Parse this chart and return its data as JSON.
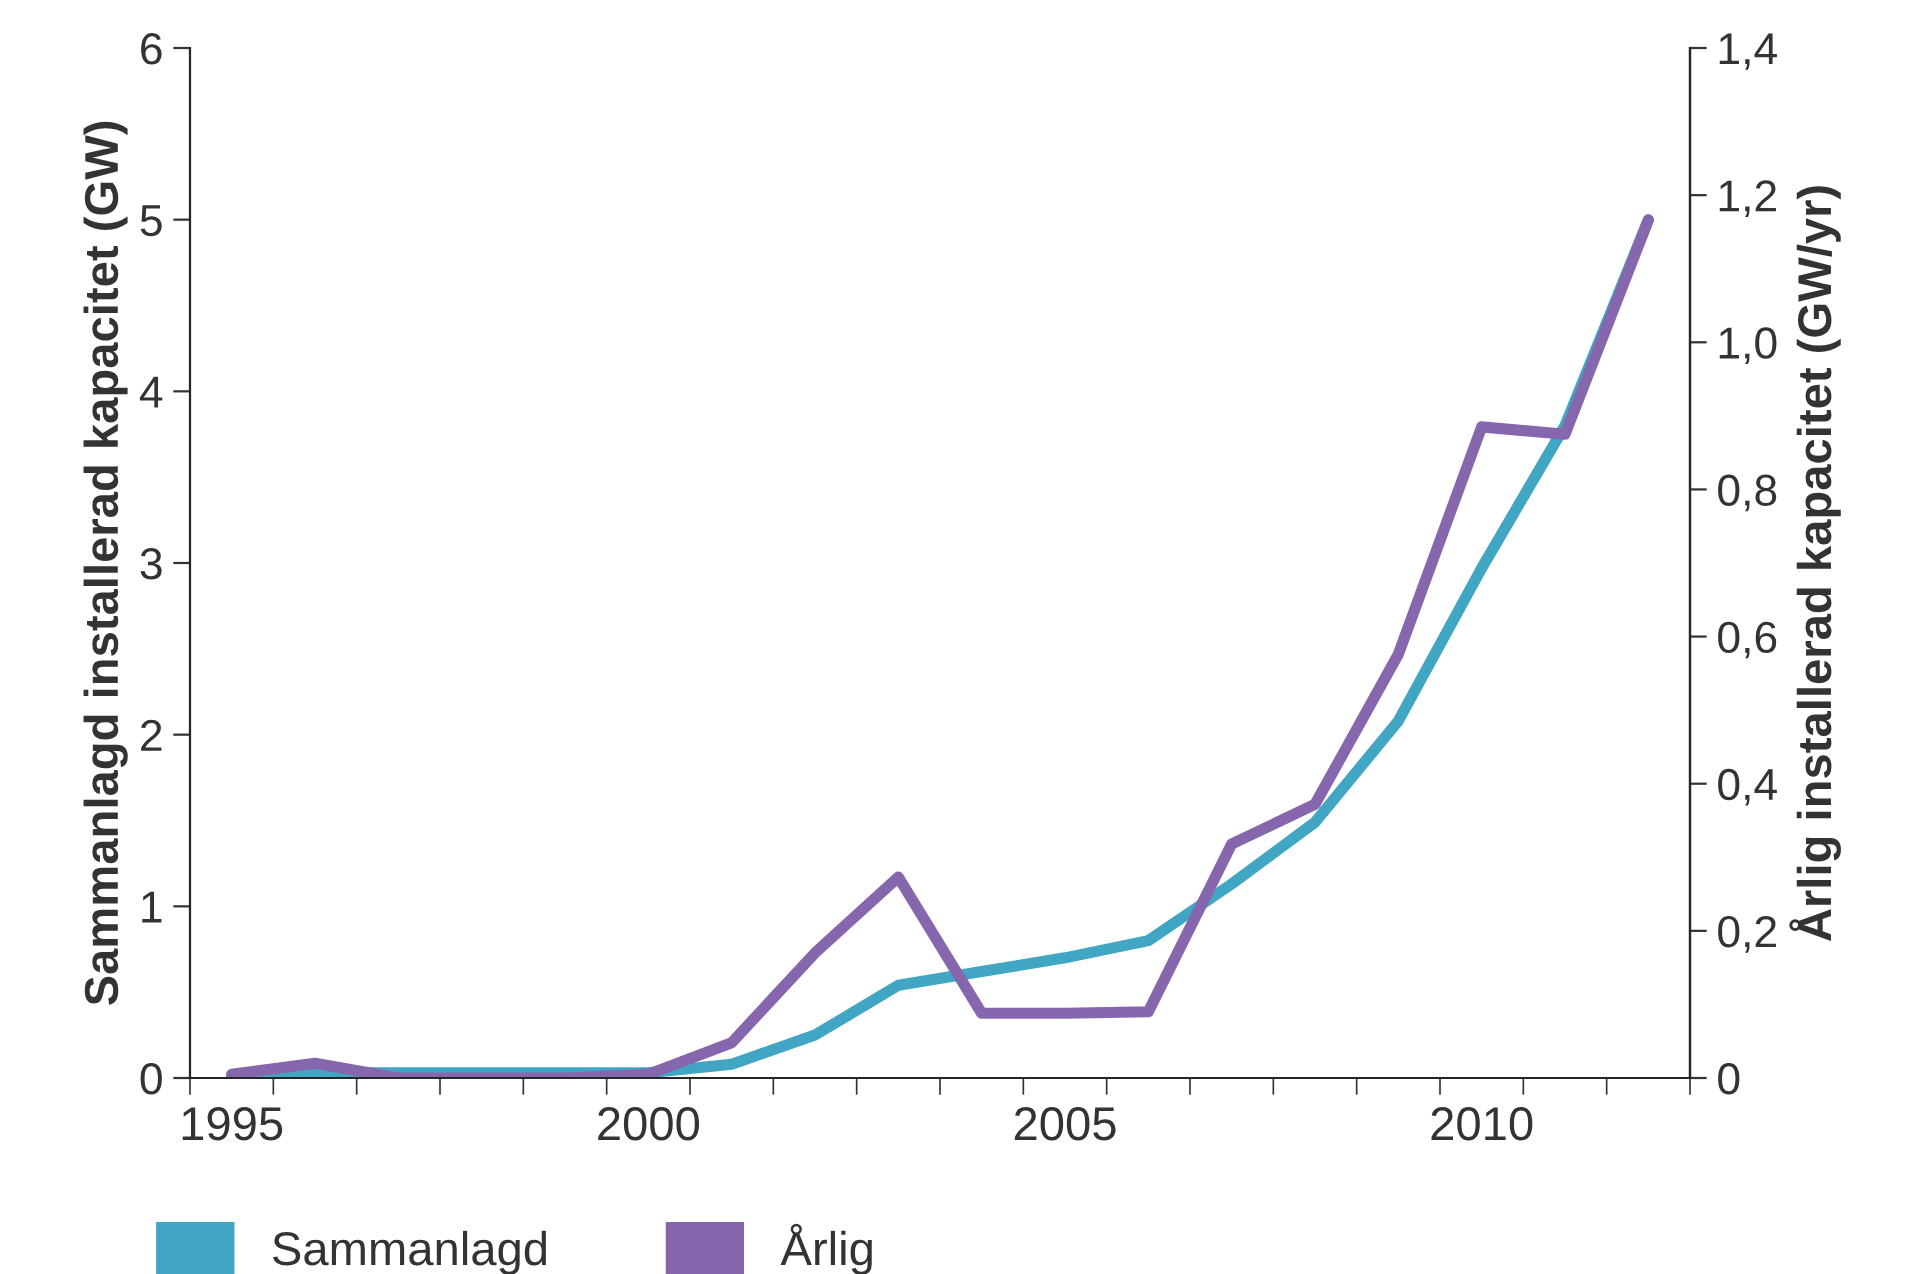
{
  "chart_data": {
    "type": "line",
    "ylabel": "Sammanlagd installerad kapacitet (GW)",
    "y2label": "Årlig installerad kapacitet (GW/yr)",
    "categories": [
      "1995",
      null,
      null,
      null,
      null,
      "2000",
      null,
      null,
      null,
      null,
      "2005",
      null,
      null,
      null,
      null,
      "2010",
      null,
      null
    ],
    "series": [
      {
        "name": "Sammanlagd",
        "color": "#41a6c4",
        "values": [
          0.01,
          0.03,
          0.03,
          0.03,
          0.03,
          0.03,
          0.08,
          0.25,
          0.54,
          0.62,
          0.7,
          0.8,
          1.13,
          1.49,
          2.08,
          2.97,
          3.8,
          5.0
        ]
      },
      {
        "name": "Årlig",
        "color": "#8666ad",
        "axis": "y2",
        "values": [
          0.005,
          0.02,
          0.0,
          0.0,
          0.0,
          0.005,
          0.048,
          0.17,
          0.273,
          0.088,
          0.088,
          0.09,
          0.318,
          0.372,
          0.576,
          0.885,
          0.875,
          1.166
        ]
      }
    ],
    "ylim": [
      0,
      6
    ],
    "yticks": [
      0,
      1,
      2,
      3,
      4,
      5,
      6
    ],
    "y2lim": [
      0,
      1.4
    ],
    "y2ticks": [
      0,
      {
        "value": 0.2,
        "label": "0,2"
      },
      {
        "value": 0.4,
        "label": "0,4"
      },
      {
        "value": 0.6,
        "label": "0,6"
      },
      {
        "value": 0.8,
        "label": "0,8"
      },
      {
        "value": 1.0,
        "label": "1,0"
      },
      {
        "value": 1.2,
        "label": "1,2"
      },
      {
        "value": 1.4,
        "label": "1,4"
      }
    ],
    "grid": false,
    "legend": "bottom left",
    "line_style": "solid",
    "marker": "none"
  }
}
